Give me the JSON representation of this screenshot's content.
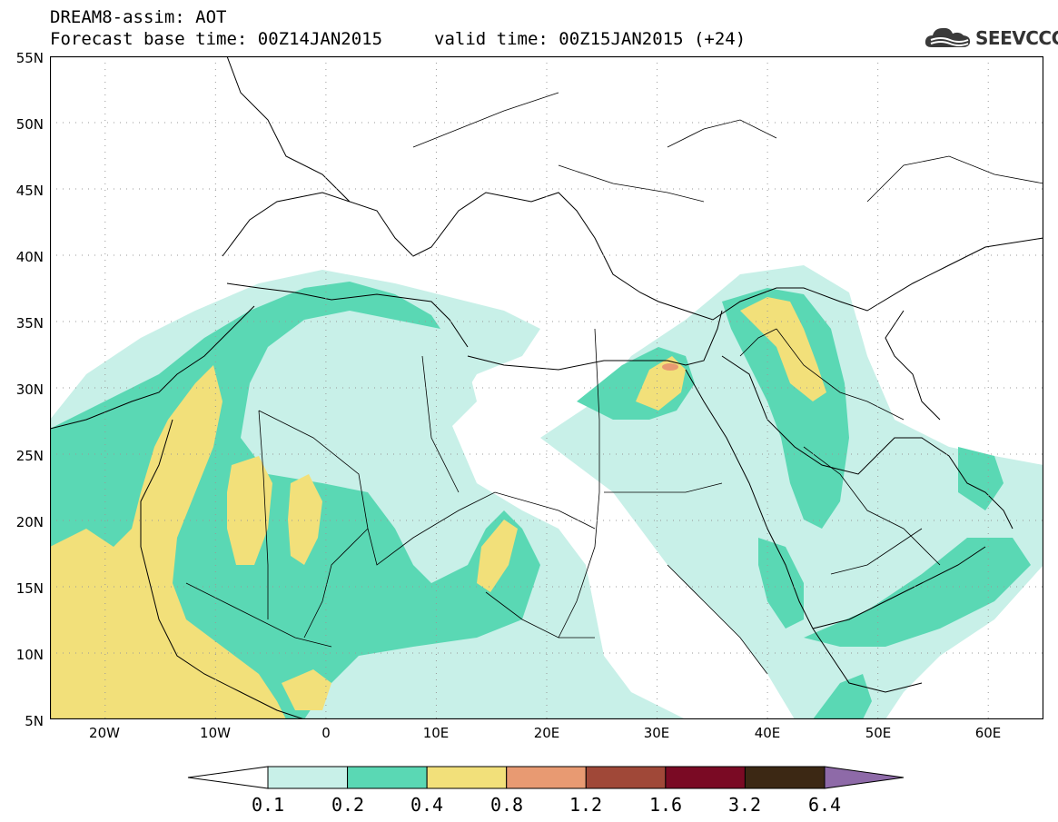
{
  "header": {
    "title": "DREAM8-assim: AOT",
    "base_time": "Forecast base time: 00Z14JAN2015",
    "valid_time": "valid time: 00Z15JAN2015 (+24)"
  },
  "logo": {
    "text": "SEEVCCC",
    "icon": "cloud-icon"
  },
  "map": {
    "variable": "Aerosol optical thickness (AOT)",
    "lat_range": [
      5,
      55
    ],
    "lon_range": [
      -25,
      65
    ],
    "lat_labels": [
      "55N",
      "50N",
      "45N",
      "40N",
      "35N",
      "30N",
      "25N",
      "20N",
      "15N",
      "10N",
      "5N"
    ],
    "lon_labels": [
      "20W",
      "10W",
      "0",
      "10E",
      "20E",
      "30E",
      "40E",
      "50E",
      "60E"
    ],
    "grid": "dotted"
  },
  "colorbar": {
    "labels": [
      "0.1",
      "0.2",
      "0.4",
      "0.8",
      "1.2",
      "1.6",
      "3.2",
      "6.4"
    ],
    "colors": [
      "#ffffff",
      "#c8f0e8",
      "#5ad8b4",
      "#f2e07a",
      "#e89a72",
      "#a04838",
      "#7a0a24",
      "#3c2814",
      "#8e6aa8"
    ]
  }
}
